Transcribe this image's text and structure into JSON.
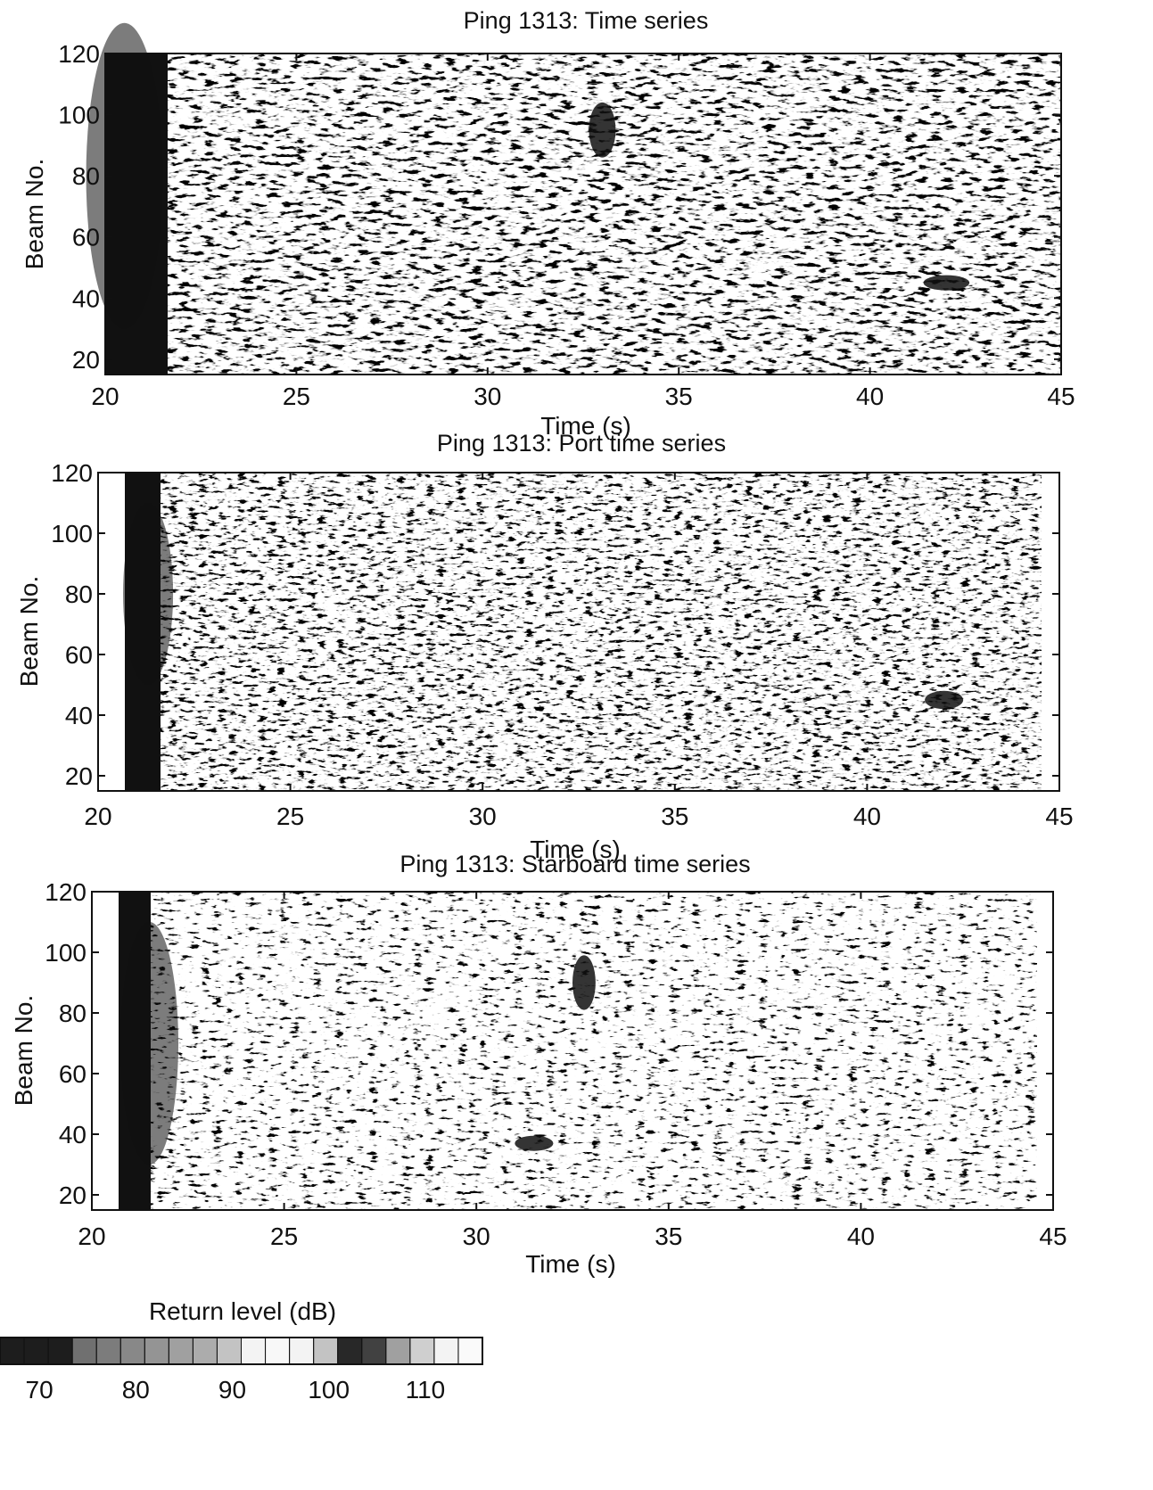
{
  "chart_data": [
    {
      "type": "heatmap",
      "title": "Ping 1313: Time series",
      "xlabel": "Time (s)",
      "ylabel": "Beam No.",
      "xlim": [
        20,
        45
      ],
      "ylim": [
        15,
        120
      ],
      "x_ticks": [
        20,
        25,
        30,
        35,
        40,
        45
      ],
      "y_ticks": [
        20,
        40,
        60,
        80,
        100,
        120
      ],
      "z_label": "Return level (dB)",
      "features": [
        {
          "t": 20.5,
          "beam": 80,
          "level": "low",
          "extent_t": 2.0,
          "extent_beam": 100
        },
        {
          "t": 33.0,
          "beam": 95,
          "level": "high",
          "extent_t": 0.7,
          "extent_beam": 18
        },
        {
          "t": 42.0,
          "beam": 45,
          "level": "high",
          "extent_t": 1.2,
          "extent_beam": 5
        }
      ]
    },
    {
      "type": "heatmap",
      "title": "Ping 1313: Port time series",
      "xlabel": "Time (s)",
      "ylabel": "Beam No.",
      "xlim": [
        20,
        45
      ],
      "ylim": [
        15,
        120
      ],
      "x_ticks": [
        20,
        25,
        30,
        35,
        40,
        45
      ],
      "y_ticks": [
        20,
        40,
        60,
        80,
        100,
        120
      ],
      "z_label": "Return level (dB)",
      "features": [
        {
          "t": 21.3,
          "beam": 80,
          "level": "low",
          "extent_t": 1.3,
          "extent_beam": 60
        },
        {
          "t": 42.0,
          "beam": 45,
          "level": "high",
          "extent_t": 1.0,
          "extent_beam": 6
        }
      ]
    },
    {
      "type": "heatmap",
      "title": "Ping 1313: Starboard time series",
      "xlabel": "Time (s)",
      "ylabel": "Beam No.",
      "xlim": [
        20,
        45
      ],
      "ylim": [
        15,
        120
      ],
      "x_ticks": [
        20,
        25,
        30,
        35,
        40,
        45
      ],
      "y_ticks": [
        20,
        40,
        60,
        80,
        100,
        120
      ],
      "z_label": "Return level (dB)",
      "features": [
        {
          "t": 21.5,
          "beam": 70,
          "level": "low",
          "extent_t": 1.5,
          "extent_beam": 80
        },
        {
          "t": 32.8,
          "beam": 90,
          "level": "high",
          "extent_t": 0.6,
          "extent_beam": 18
        },
        {
          "t": 31.5,
          "beam": 37,
          "level": "high",
          "extent_t": 1.0,
          "extent_beam": 5
        }
      ]
    }
  ],
  "colorbar": {
    "label": "Return level (dB)",
    "ticks": [
      "70",
      "80",
      "90",
      "100",
      "110"
    ],
    "range_db": [
      65,
      115
    ]
  },
  "colors": {
    "ink": "#111111",
    "paper": "#ffffff"
  }
}
